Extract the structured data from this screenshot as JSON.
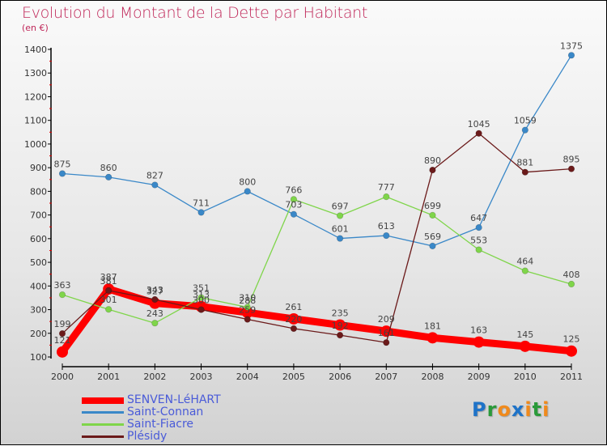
{
  "header": {
    "title": "Evolution du Montant de la Dette par Habitant",
    "unit": "(en €)"
  },
  "logo": {
    "text": "Proxiti",
    "letters": [
      {
        "ch": "P",
        "color": "#1e73c8"
      },
      {
        "ch": "r",
        "color": "#2a9a3a"
      },
      {
        "ch": "o",
        "color": "#f08a1c"
      },
      {
        "ch": "x",
        "color": "#1e73c8"
      },
      {
        "ch": "i",
        "color": "#f08a1c"
      },
      {
        "ch": "t",
        "color": "#2a9a3a"
      },
      {
        "ch": "i",
        "color": "#f08a1c"
      }
    ]
  },
  "chart_data": {
    "type": "line",
    "title": "Evolution du Montant de la Dette par Habitant",
    "ylabel": "(en €)",
    "xlabel": "",
    "x": [
      "2000",
      "2001",
      "2002",
      "2003",
      "2004",
      "2005",
      "2006",
      "2007",
      "2008",
      "2009",
      "2010",
      "2011"
    ],
    "ylim": [
      100,
      1400
    ],
    "yticks": [
      100,
      200,
      300,
      400,
      500,
      600,
      700,
      800,
      900,
      1000,
      1100,
      1200,
      1300,
      1400
    ],
    "legend_position": "bottom-left",
    "series": [
      {
        "name": "SENVEN-LéHART",
        "color": "#ff0000",
        "values": [
          121,
          387,
          327,
          313,
          288,
          261,
          235,
          209,
          181,
          163,
          145,
          125
        ]
      },
      {
        "name": "Saint-Connan",
        "color": "#3a88c8",
        "values": [
          875,
          860,
          827,
          711,
          800,
          703,
          601,
          613,
          569,
          647,
          1059,
          1375
        ]
      },
      {
        "name": "Saint-Fiacre",
        "color": "#7fd54a",
        "values": [
          363,
          301,
          243,
          351,
          310,
          766,
          697,
          777,
          699,
          553,
          464,
          408
        ]
      },
      {
        "name": "Plésidy",
        "color": "#6b1a1a",
        "values": [
          199,
          381,
          343,
          300,
          259,
          220,
          192,
          161,
          890,
          1045,
          881,
          895
        ]
      }
    ]
  }
}
